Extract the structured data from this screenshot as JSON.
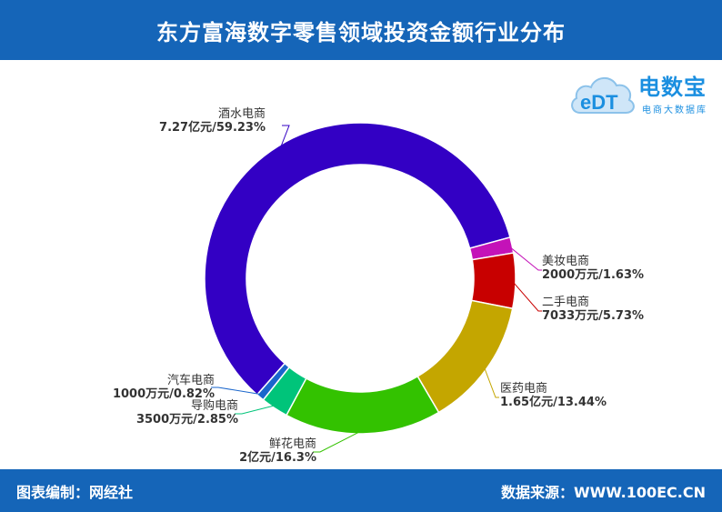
{
  "header": {
    "title": "东方富海数字零售领域投资金额行业分布"
  },
  "footer": {
    "left": "图表编制：网经社",
    "right": "数据来源：WWW.100EC.CN"
  },
  "logo": {
    "badge": "eDT",
    "name": "电数宝",
    "tagline": "电商大数据库"
  },
  "chart_data": {
    "type": "pie",
    "variant": "donut",
    "title": "东方富海数字零售领域投资金额行业分布",
    "legend": "none",
    "slices": [
      {
        "name": "酒水电商",
        "value_text": "7.27亿元/59.23%",
        "percent": 59.23,
        "color": "#3300c4"
      },
      {
        "name": "美妆电商",
        "value_text": "2000万元/1.63%",
        "percent": 1.63,
        "color": "#c412b8"
      },
      {
        "name": "二手电商",
        "value_text": "7033万元/5.73%",
        "percent": 5.73,
        "color": "#c80000"
      },
      {
        "name": "医药电商",
        "value_text": "1.65亿元/13.44%",
        "percent": 13.44,
        "color": "#c4a600"
      },
      {
        "name": "鲜花电商",
        "value_text": "2亿元/16.3%",
        "percent": 16.3,
        "color": "#33c200"
      },
      {
        "name": "导购电商",
        "value_text": "3500万元/2.85%",
        "percent": 2.85,
        "color": "#00c47a"
      },
      {
        "name": "汽车电商",
        "value_text": "1000万元/0.82%",
        "percent": 0.82,
        "color": "#1a66cc"
      }
    ]
  }
}
